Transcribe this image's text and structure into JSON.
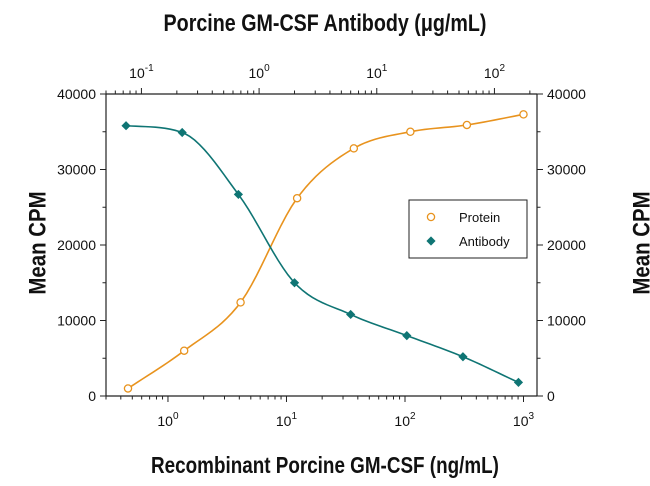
{
  "chart_data": {
    "type": "scatter",
    "title_top": "Porcine GM-CSF Antibody (μg/mL)",
    "xlabel": "Recombinant Porcine GM-CSF (ng/mL)",
    "ylabel_left": "Mean CPM",
    "ylabel_right": "Mean CPM",
    "x_scale": "log",
    "x_bottom": {
      "lim": [
        0.3,
        1300
      ],
      "ticks": [
        1,
        10,
        100,
        1000
      ],
      "tick_labels": [
        "10",
        "10",
        "10",
        "10"
      ],
      "tick_exponents": [
        "0",
        "1",
        "2",
        "3"
      ]
    },
    "x_top": {
      "lim": [
        0.05,
        230
      ],
      "ticks": [
        0.1,
        1,
        10,
        100
      ],
      "tick_labels": [
        "10",
        "10",
        "10",
        "10"
      ],
      "tick_exponents": [
        "-1",
        "0",
        "1",
        "2"
      ]
    },
    "ylim": [
      0,
      40000
    ],
    "y_ticks": [
      0,
      10000,
      20000,
      30000,
      40000
    ],
    "y_tick_labels": [
      "0",
      "10000",
      "20000",
      "30000",
      "40000"
    ],
    "grid": false,
    "legend_position": "center-right",
    "series": [
      {
        "name": "Protein",
        "x_axis": "bottom",
        "marker": "open-circle",
        "color": "#E8931E",
        "x": [
          0.46,
          1.37,
          4.1,
          12.3,
          37,
          111,
          333,
          1000
        ],
        "y": [
          1000,
          6000,
          12400,
          26200,
          32800,
          35000,
          35900,
          37300
        ]
      },
      {
        "name": "Antibody",
        "x_axis": "top",
        "marker": "filled-diamond",
        "color": "#0F7574",
        "x": [
          0.074,
          0.222,
          0.667,
          2,
          6,
          18,
          54,
          160
        ],
        "y": [
          35800,
          34900,
          26700,
          15000,
          10800,
          8000,
          5200,
          1800
        ]
      }
    ]
  }
}
